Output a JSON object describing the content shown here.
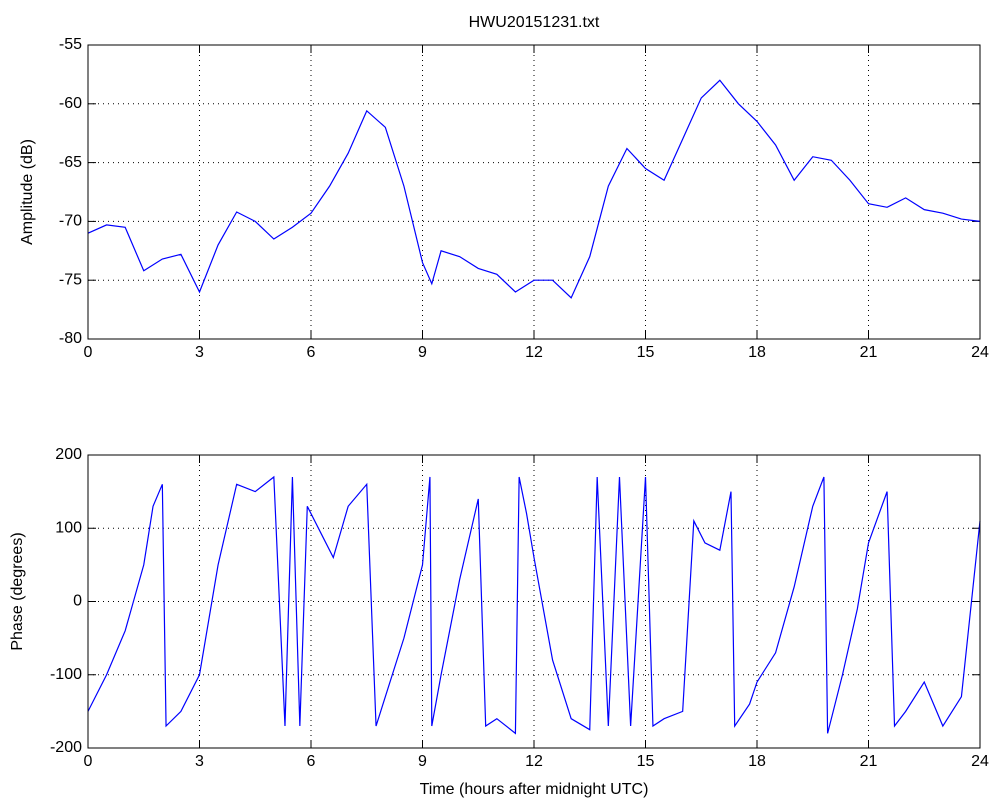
{
  "chart_data": [
    {
      "type": "line",
      "title": "HWU20151231.txt",
      "y_label": "Amplitude (dB)",
      "grid": true,
      "xlim": [
        0,
        24
      ],
      "xticks": [
        0,
        3,
        6,
        9,
        12,
        15,
        18,
        21,
        24
      ],
      "ylim": [
        -80,
        -55
      ],
      "yticks": [
        -80,
        -75,
        -70,
        -65,
        -60,
        -55
      ],
      "x": [
        0,
        0.5,
        1,
        1.5,
        2,
        2.5,
        3,
        3.5,
        4,
        4.5,
        5,
        5.5,
        6,
        6.5,
        7,
        7.5,
        8,
        8.5,
        9,
        9.25,
        9.5,
        10,
        10.5,
        11,
        11.5,
        12,
        12.5,
        13,
        13.5,
        14,
        14.5,
        15,
        15.5,
        16,
        16.5,
        17,
        17.5,
        18,
        18.5,
        19,
        19.5,
        20,
        20.5,
        21,
        21.5,
        22,
        22.5,
        23,
        23.5,
        24
      ],
      "series": [
        {
          "name": "Amplitude",
          "color": "#0000ff",
          "values": [
            -71,
            -70.3,
            -70.5,
            -74.2,
            -73.2,
            -72.8,
            -76,
            -72,
            -69.2,
            -70,
            -71.5,
            -70.5,
            -69.3,
            -67,
            -64.2,
            -60.6,
            -62,
            -67,
            -73.5,
            -75.3,
            -72.5,
            -73,
            -74,
            -74.5,
            -76,
            -75,
            -75,
            -76.5,
            -73,
            -67,
            -63.8,
            -65.5,
            -66.5,
            -63,
            -59.5,
            -58,
            -60,
            -61.5,
            -63.5,
            -66.5,
            -64.5,
            -64.8,
            -66.5,
            -68.5,
            -68.8,
            -68,
            -69,
            -69.3,
            -69.8,
            -70
          ]
        }
      ]
    },
    {
      "type": "line",
      "x_label": "Time (hours after midnight UTC)",
      "y_label": "Phase (degrees)",
      "grid": true,
      "xlim": [
        0,
        24
      ],
      "xticks": [
        0,
        3,
        6,
        9,
        12,
        15,
        18,
        21,
        24
      ],
      "ylim": [
        -200,
        200
      ],
      "yticks": [
        -200,
        -100,
        0,
        100,
        200
      ],
      "x": [
        0,
        0.5,
        1,
        1.5,
        1.75,
        2,
        2.1,
        2.5,
        3,
        3.5,
        4,
        4.5,
        5,
        5.3,
        5.5,
        5.7,
        5.9,
        6.3,
        6.6,
        7,
        7.5,
        7.75,
        8,
        8.5,
        9,
        9.2,
        9.25,
        9.5,
        10,
        10.5,
        10.7,
        11,
        11.5,
        11.6,
        11.8,
        12,
        12.5,
        13,
        13.5,
        13.7,
        14,
        14.3,
        14.6,
        15,
        15.2,
        15.5,
        16,
        16.3,
        16.6,
        17,
        17.3,
        17.4,
        17.8,
        18,
        18.5,
        19,
        19.5,
        19.8,
        19.9,
        20.3,
        20.7,
        21,
        21.5,
        21.7,
        22,
        22.5,
        23,
        23.5,
        24
      ],
      "series": [
        {
          "name": "Phase",
          "color": "#0000ff",
          "values": [
            -150,
            -100,
            -40,
            50,
            130,
            160,
            -170,
            -150,
            -100,
            50,
            160,
            150,
            170,
            -170,
            170,
            -170,
            130,
            90,
            60,
            130,
            160,
            -170,
            -130,
            -50,
            50,
            170,
            -170,
            -100,
            30,
            140,
            -170,
            -160,
            -180,
            170,
            120,
            60,
            -80,
            -160,
            -175,
            170,
            -170,
            170,
            -170,
            170,
            -170,
            -160,
            -150,
            110,
            80,
            70,
            150,
            -170,
            -140,
            -110,
            -70,
            20,
            130,
            170,
            -180,
            -100,
            -10,
            80,
            150,
            -170,
            -150,
            -110,
            -170,
            -130,
            110
          ]
        }
      ]
    }
  ]
}
